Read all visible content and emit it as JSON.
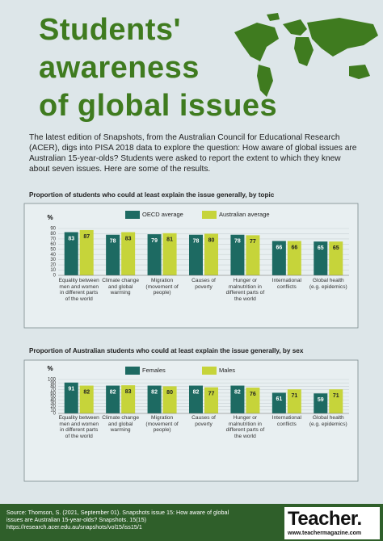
{
  "header": {
    "title_lines": [
      "Students'",
      "awareness",
      "of global issues"
    ],
    "intro": "The latest edition of Snapshots, from the Australian Council for Educational Research (ACER), digs into PISA 2018 data to explore the question: How aware of global issues are Australian 15-year-olds? Students were asked to report the extent to which they knew about seven issues. Here are some of the results."
  },
  "chart_data": [
    {
      "type": "bar",
      "title": "Proportion of students who could at least explain the issue generally, by topic",
      "y_label": "%",
      "categories": [
        "Equality between men and women in different parts of the world",
        "Climate change and global warming",
        "Migration (movement of people)",
        "Causes of poverty",
        "Hunger or malnutrition in different parts of the world",
        "International conflicts",
        "Global health (e.g. epidemics)"
      ],
      "series": [
        {
          "name": "OECD average",
          "color": "#1d6a62",
          "values": [
            83,
            78,
            79,
            78,
            78,
            66,
            65
          ]
        },
        {
          "name": "Australian average",
          "color": "#c6d43a",
          "values": [
            87,
            83,
            81,
            80,
            77,
            66,
            65
          ]
        }
      ],
      "ylim": [
        0,
        90
      ],
      "yticks": [
        0,
        10,
        20,
        30,
        40,
        50,
        60,
        70,
        80,
        90
      ],
      "grid": true
    },
    {
      "type": "bar",
      "title": "Proportion of Australian students who could at least explain the issue generally, by sex",
      "y_label": "%",
      "categories": [
        "Equality between men and women in different parts of the world",
        "Climate change and global warming",
        "Migration (movement of people)",
        "Causes of poverty",
        "Hunger or malnutrition in different parts of the world",
        "International conflicts",
        "Global health (e.g. epidemics)"
      ],
      "series": [
        {
          "name": "Females",
          "color": "#1d6a62",
          "values": [
            91,
            82,
            82,
            82,
            82,
            61,
            59
          ]
        },
        {
          "name": "Males",
          "color": "#c6d43a",
          "values": [
            82,
            83,
            80,
            77,
            76,
            71,
            71
          ]
        }
      ],
      "ylim": [
        0,
        100
      ],
      "yticks": [
        0,
        10,
        20,
        30,
        40,
        50,
        60,
        70,
        80,
        90,
        100
      ],
      "grid": true
    }
  ],
  "footer": {
    "source": "Source: Thomson, S. (2021, September 01). Snapshots issue 15: How aware of global issues are Australian 15-year-olds? Snapshots. 15(15) https://research.acer.edu.au/snapshots/vol15/iss15/1",
    "logo": "Teacher.",
    "url": "www.teachermagazine.com"
  }
}
